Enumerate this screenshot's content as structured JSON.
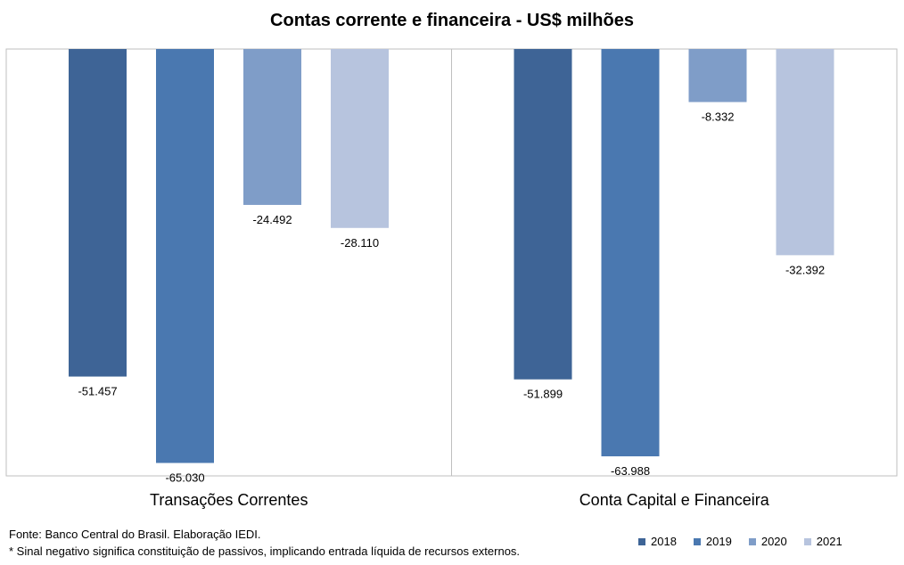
{
  "chart_data": {
    "type": "bar",
    "title": "Contas corrente e financeira - US$ milhões",
    "categories": [
      "Transações Correntes",
      "Conta Capital e Financeira"
    ],
    "series": [
      {
        "name": "2018",
        "color": "#3e6496",
        "values": [
          -51457,
          -51899
        ],
        "labels": [
          "-51.457",
          "-51.899"
        ]
      },
      {
        "name": "2019",
        "color": "#4a78b0",
        "values": [
          -65030,
          -63988
        ],
        "labels": [
          "-65.030",
          "-63.988"
        ]
      },
      {
        "name": "2020",
        "color": "#7f9dc8",
        "values": [
          -24492,
          -8332
        ],
        "labels": [
          "-24.492",
          "-8.332"
        ]
      },
      {
        "name": "2021",
        "color": "#b7c4de",
        "values": [
          -28110,
          -32392
        ],
        "labels": [
          "-28.110",
          "-32.392"
        ]
      }
    ],
    "ylim": [
      -70000,
      0
    ],
    "legend": "bottom-right",
    "grid": false
  },
  "notes": {
    "source": "Fonte: Banco Central do Brasil. Elaboração IEDI.",
    "footnote": "* Sinal negativo significa constituição de passivos, implicando entrada líquida de recursos externos."
  }
}
